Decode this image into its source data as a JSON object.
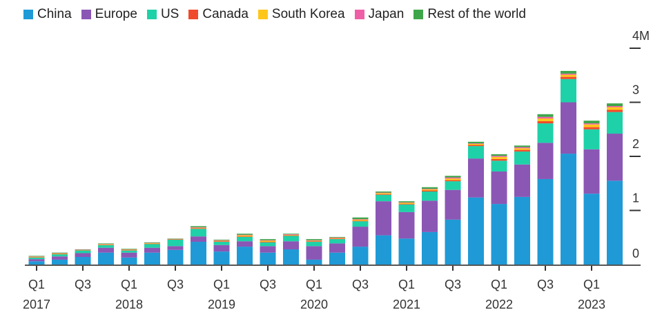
{
  "chart_data": {
    "type": "bar",
    "stacked": true,
    "title": "",
    "xlabel": "",
    "ylabel": "",
    "ylim": [
      0,
      4
    ],
    "y_ticks": [
      "0",
      "1",
      "2",
      "3",
      "4M"
    ],
    "y_axis_side": "right",
    "legend_position": "top",
    "categories": [
      "Q1 2017",
      "Q2 2017",
      "Q3 2017",
      "Q4 2017",
      "Q1 2018",
      "Q2 2018",
      "Q3 2018",
      "Q4 2018",
      "Q1 2019",
      "Q2 2019",
      "Q3 2019",
      "Q4 2019",
      "Q1 2020",
      "Q2 2020",
      "Q3 2020",
      "Q4 2020",
      "Q1 2021",
      "Q2 2021",
      "Q3 2021",
      "Q4 2021",
      "Q1 2022",
      "Q2 2022",
      "Q3 2022",
      "Q4 2022",
      "Q1 2023",
      "Q2 2023"
    ],
    "x_tick_labels": [
      {
        "q": "Q1",
        "year": "2017"
      },
      {
        "q": "Q3",
        "year": ""
      },
      {
        "q": "Q1",
        "year": "2018"
      },
      {
        "q": "Q3",
        "year": ""
      },
      {
        "q": "Q1",
        "year": "2019"
      },
      {
        "q": "Q3",
        "year": ""
      },
      {
        "q": "Q1",
        "year": "2020"
      },
      {
        "q": "Q3",
        "year": ""
      },
      {
        "q": "Q1",
        "year": "2021"
      },
      {
        "q": "Q3",
        "year": ""
      },
      {
        "q": "Q1",
        "year": "2022"
      },
      {
        "q": "Q3",
        "year": ""
      },
      {
        "q": "Q1",
        "year": "2023"
      }
    ],
    "series": [
      {
        "name": "China",
        "color": "#1f9ad6",
        "values": [
          0.06,
          0.09,
          0.14,
          0.22,
          0.13,
          0.22,
          0.27,
          0.42,
          0.24,
          0.33,
          0.22,
          0.28,
          0.09,
          0.22,
          0.33,
          0.54,
          0.48,
          0.6,
          0.83,
          1.24,
          1.12,
          1.25,
          1.58,
          2.05,
          1.31,
          1.55
        ]
      },
      {
        "name": "Europe",
        "color": "#8b57b5",
        "values": [
          0.04,
          0.06,
          0.07,
          0.09,
          0.09,
          0.09,
          0.07,
          0.1,
          0.12,
          0.1,
          0.12,
          0.15,
          0.25,
          0.17,
          0.37,
          0.63,
          0.49,
          0.58,
          0.55,
          0.72,
          0.6,
          0.6,
          0.67,
          0.95,
          0.82,
          0.87
        ]
      },
      {
        "name": "US",
        "color": "#1fd1a8",
        "values": [
          0.03,
          0.04,
          0.05,
          0.05,
          0.04,
          0.07,
          0.12,
          0.14,
          0.06,
          0.08,
          0.07,
          0.1,
          0.08,
          0.08,
          0.1,
          0.12,
          0.14,
          0.17,
          0.16,
          0.23,
          0.2,
          0.24,
          0.36,
          0.43,
          0.37,
          0.4
        ]
      },
      {
        "name": "Canada",
        "color": "#f04a2c",
        "values": [
          0.005,
          0.005,
          0.005,
          0.005,
          0.005,
          0.005,
          0.005,
          0.01,
          0.01,
          0.01,
          0.01,
          0.01,
          0.01,
          0.01,
          0.01,
          0.01,
          0.01,
          0.02,
          0.02,
          0.02,
          0.03,
          0.03,
          0.04,
          0.04,
          0.04,
          0.04
        ]
      },
      {
        "name": "South Korea",
        "color": "#ffc61a",
        "values": [
          0.01,
          0.01,
          0.005,
          0.01,
          0.01,
          0.01,
          0.005,
          0.01,
          0.01,
          0.02,
          0.02,
          0.01,
          0.01,
          0.01,
          0.02,
          0.02,
          0.02,
          0.02,
          0.03,
          0.02,
          0.04,
          0.03,
          0.05,
          0.04,
          0.05,
          0.05
        ]
      },
      {
        "name": "Japan",
        "color": "#ef5fa7",
        "values": [
          0.005,
          0.005,
          0.005,
          0.005,
          0.005,
          0.005,
          0.005,
          0.01,
          0.01,
          0.01,
          0.01,
          0.01,
          0.01,
          0.01,
          0.01,
          0.01,
          0.01,
          0.01,
          0.02,
          0.01,
          0.02,
          0.02,
          0.03,
          0.02,
          0.02,
          0.02
        ]
      },
      {
        "name": "Rest of the world",
        "color": "#3ea64a",
        "values": [
          0.01,
          0.01,
          0.005,
          0.01,
          0.01,
          0.01,
          0.005,
          0.02,
          0.01,
          0.02,
          0.02,
          0.01,
          0.02,
          0.01,
          0.03,
          0.02,
          0.02,
          0.03,
          0.03,
          0.03,
          0.03,
          0.03,
          0.05,
          0.05,
          0.05,
          0.05
        ]
      }
    ]
  }
}
